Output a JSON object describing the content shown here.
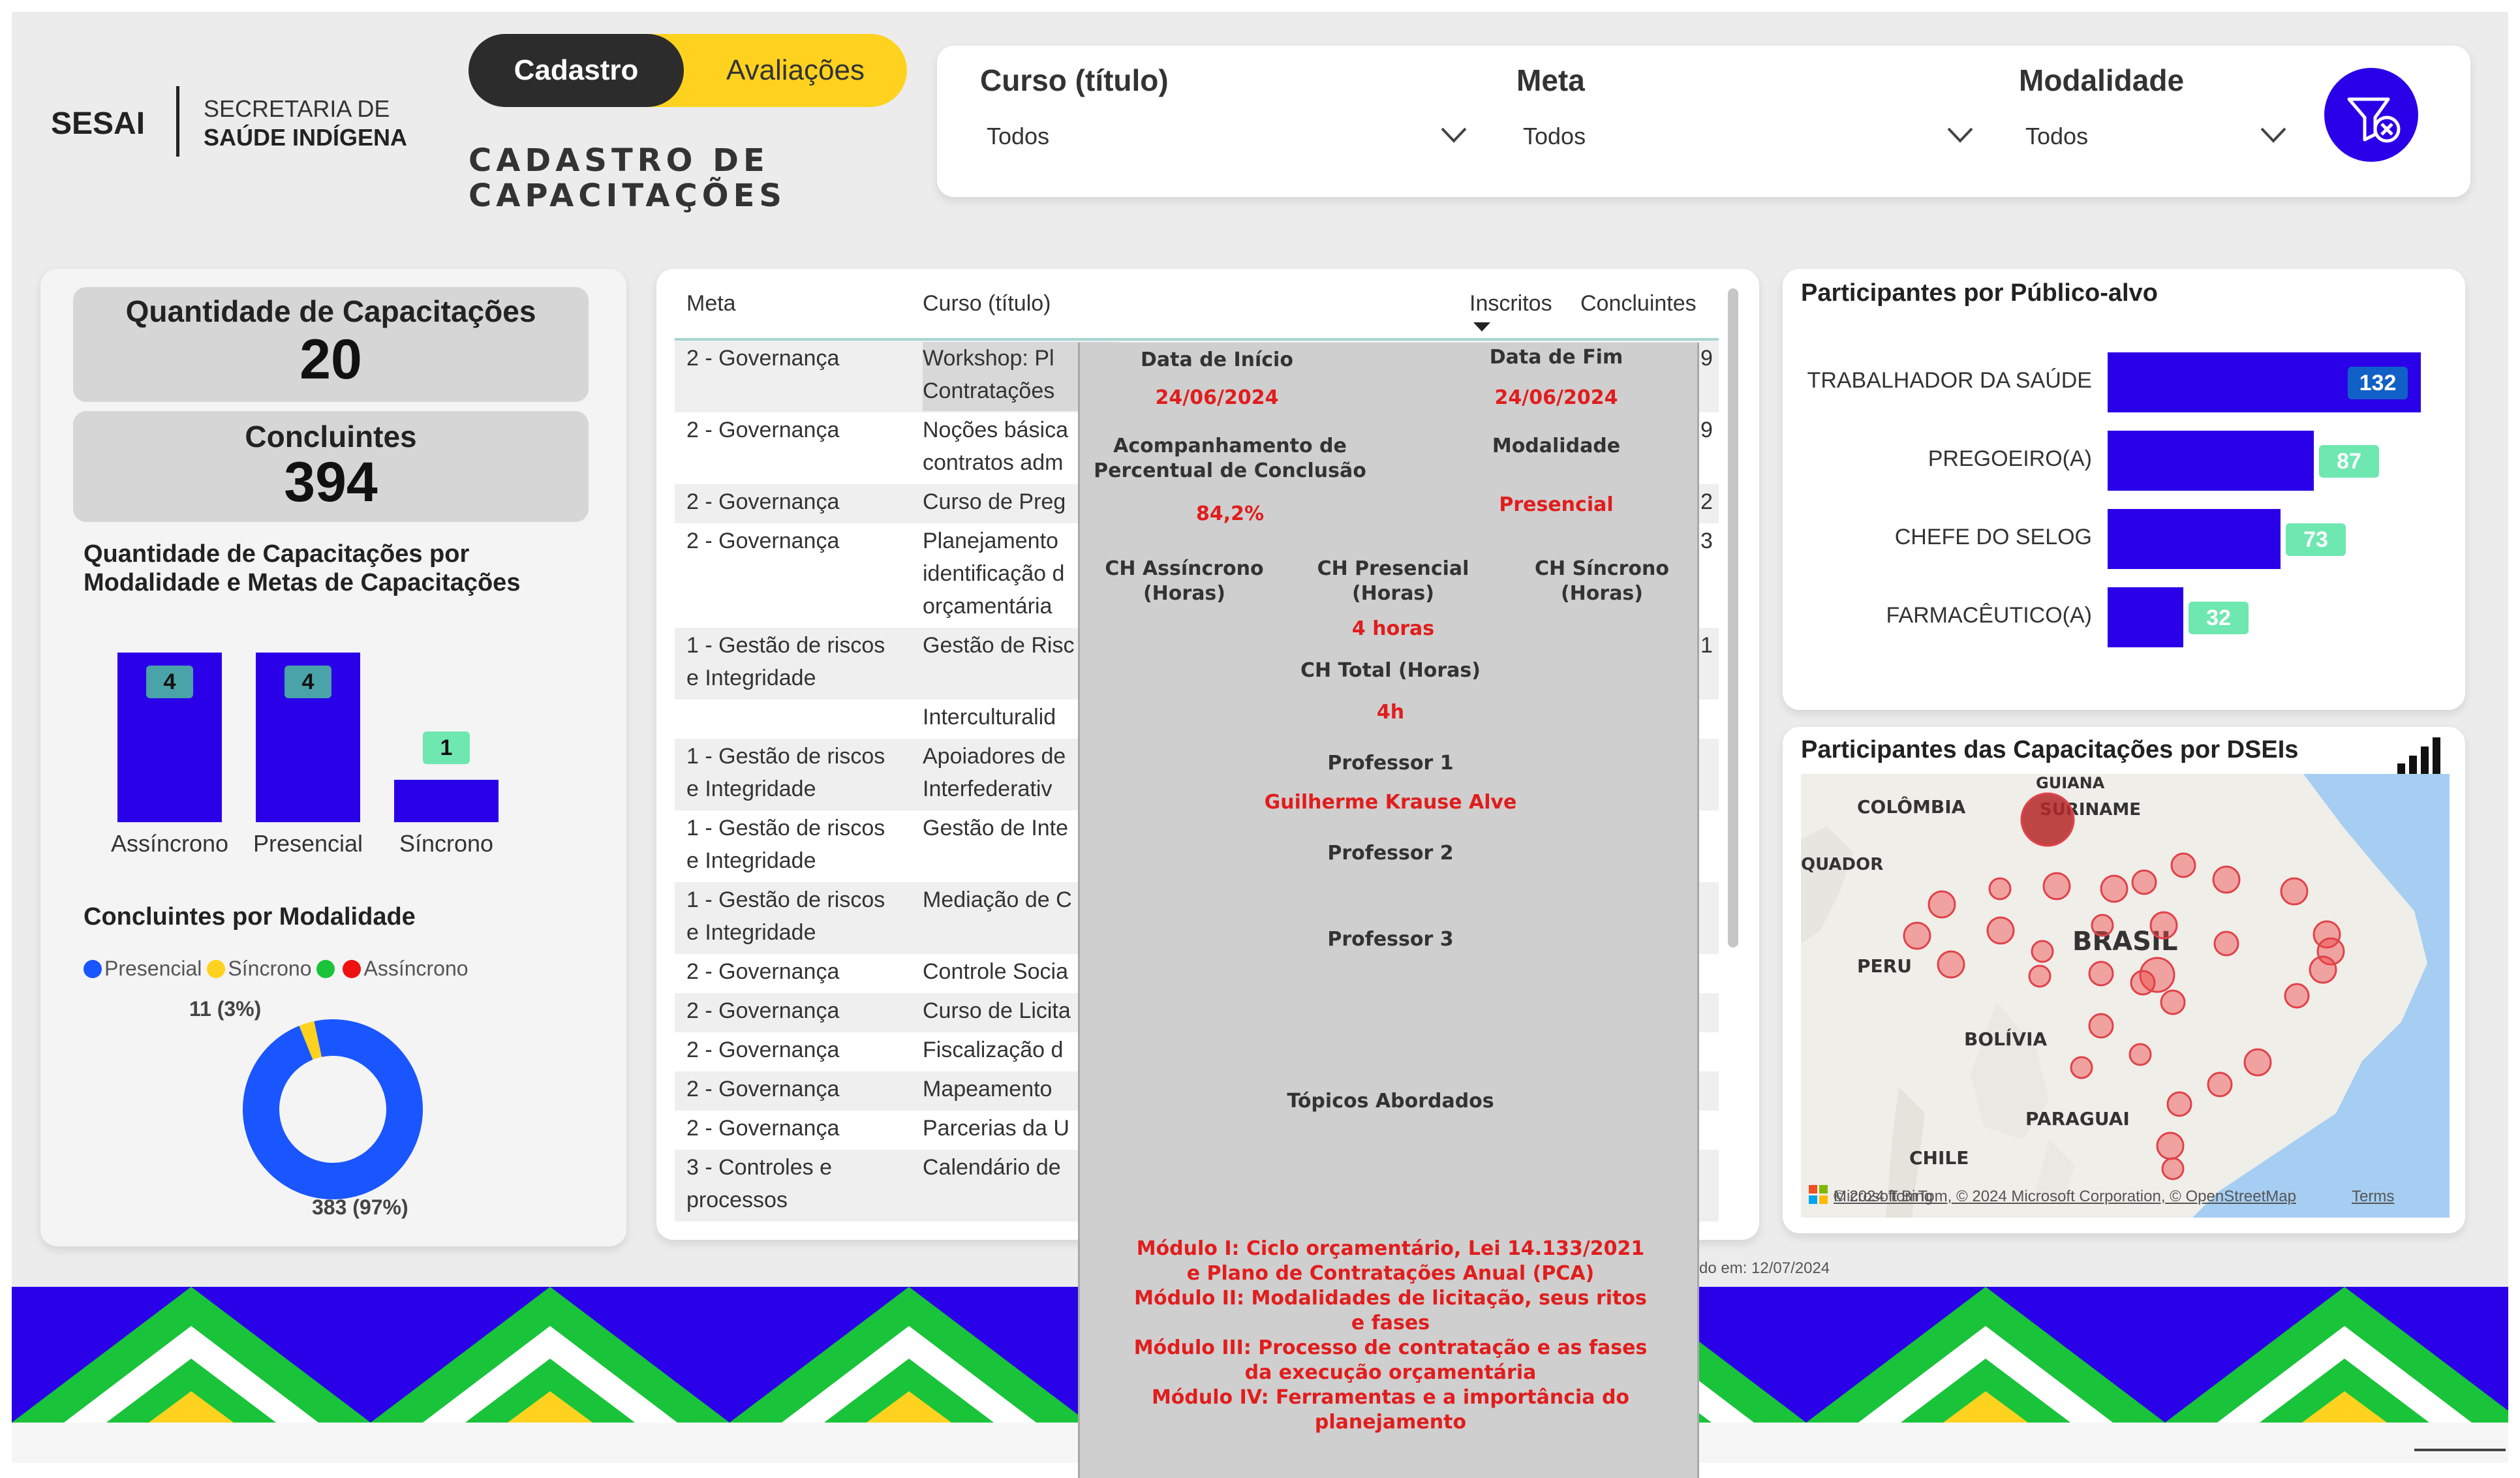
{
  "brand": {
    "short": "SESAI",
    "line1": "SECRETARIA DE",
    "line2": "SAÚDE INDÍGENA"
  },
  "nav": {
    "active": "Cadastro",
    "inactive": "Avaliações"
  },
  "page_title": {
    "line1": "CADASTRO DE",
    "line2": "CAPACITAÇÕES"
  },
  "filters": [
    {
      "label": "Curso (título)",
      "value": "Todos"
    },
    {
      "label": "Meta",
      "value": "Todos"
    },
    {
      "label": "Modalidade",
      "value": "Todos"
    }
  ],
  "kpis": {
    "qtd_label": "Quantidade de Capacitações",
    "qtd_value": "20",
    "conc_label": "Concluintes",
    "conc_value": "394"
  },
  "modalidade_chart": {
    "title_line1": "Quantidade de Capacitações por",
    "title_line2": "Modalidade e Metas de Capacitações",
    "chart_data": {
      "type": "bar",
      "categories": [
        "Assíncrono",
        "Presencial",
        "Síncrono"
      ],
      "values": [
        4,
        4,
        1
      ],
      "colors": [
        "#2a00e8",
        "#2a00e8",
        "#2a00e8"
      ],
      "label_colors": [
        "#4aa3a8",
        "#4aa3a8",
        "#6ee7b0"
      ]
    }
  },
  "concluintes_chart": {
    "title": "Concluintes por Modalidade",
    "legend": [
      "Presencial",
      "Síncrono",
      "",
      "Assíncrono"
    ],
    "legend_colors": [
      "#1a56ff",
      "#ffd21f",
      "#19c33a",
      "#ee1111"
    ],
    "chart_data": {
      "type": "pie",
      "labels": [
        "Presencial",
        "Síncrono"
      ],
      "values": [
        383,
        11
      ],
      "colors": [
        "#1a56ff",
        "#ffd21f"
      ]
    },
    "label_small": "11 (3%)",
    "label_large": "383 (97%)"
  },
  "table": {
    "headers": {
      "meta": "Meta",
      "curso": "Curso (título)",
      "inscritos": "Inscritos",
      "concluintes": "Concluintes"
    },
    "rows": [
      {
        "meta": "2 - Governança",
        "curso": "Workshop: Pl\nContratações",
        "edge": "9"
      },
      {
        "meta": "2 - Governança",
        "curso": "Noções básica\ncontratos adm",
        "edge": "9"
      },
      {
        "meta": "2 - Governança",
        "curso": "Curso de Preg",
        "edge": "2"
      },
      {
        "meta": "2 - Governança",
        "curso": "Planejamento\nidentificação d\norçamentária",
        "edge": "3"
      },
      {
        "meta": "1 - Gestão de riscos\ne Integridade",
        "curso": "Gestão de Risc",
        "edge": "1"
      },
      {
        "meta": "",
        "curso": "Interculturalid",
        "edge": ""
      },
      {
        "meta": "1 - Gestão de riscos\ne Integridade",
        "curso": "Apoiadores de\nInterfederativ",
        "edge": ""
      },
      {
        "meta": "1 - Gestão de riscos\ne Integridade",
        "curso": "Gestão de Inte",
        "edge": ""
      },
      {
        "meta": "1 - Gestão de riscos\ne Integridade",
        "curso": "Mediação de C",
        "edge": ""
      },
      {
        "meta": "2 - Governança",
        "curso": "Controle Socia",
        "edge": ""
      },
      {
        "meta": "2 - Governança",
        "curso": "Curso de Licita",
        "edge": ""
      },
      {
        "meta": "2 - Governança",
        "curso": "Fiscalização d",
        "edge": ""
      },
      {
        "meta": "2 - Governança",
        "curso": "Mapeamento",
        "edge": ""
      },
      {
        "meta": "2 - Governança",
        "curso": "Parcerias da U",
        "edge": ""
      },
      {
        "meta": "3 - Controles e\nprocessos",
        "curso": "Calendário de",
        "edge": ""
      }
    ]
  },
  "tooltip": {
    "data_inicio_label": "Data de Início",
    "data_inicio": "24/06/2024",
    "data_fim_label": "Data de Fim",
    "data_fim": "24/06/2024",
    "acomp_label": "Acompanhamento de\nPercentual de Conclusão",
    "acomp_value": "84,2%",
    "modalidade_label": "Modalidade",
    "modalidade_value": "Presencial",
    "ch_assinc_label": "CH Assíncrono\n(Horas)",
    "ch_pres_label": "CH Presencial\n(Horas)",
    "ch_pres_value": "4 horas",
    "ch_sinc_label": "CH Síncrono\n(Horas)",
    "ch_total_label": "CH Total (Horas)",
    "ch_total_value": "4h",
    "prof1_label": "Professor 1",
    "prof1_value": "Guilherme Krause Alve",
    "prof2_label": "Professor 2",
    "prof3_label": "Professor 3",
    "topicos_label": "Tópicos Abordados",
    "topicos_text": "Módulo I: Ciclo orçamentário, Lei 14.133/2021\ne Plano de Contratações Anual (PCA)\nMódulo II: Modalidades de licitação, seus ritos\ne fases\nMódulo III: Processo de contratação e as fases\nda execução orçamentária\nMódulo IV: Ferramentas e a importância do\nplanejamento"
  },
  "publico_chart": {
    "title": "Participantes por Público-alvo",
    "chart_data": {
      "type": "bar",
      "orientation": "horizontal",
      "categories": [
        "TRABALHADOR DA SAÚDE",
        "PREGOEIRO(A)",
        "CHEFE DO SELOG",
        "FARMACÊUTICO(A)"
      ],
      "values": [
        132,
        87,
        73,
        32
      ],
      "color": "#2a00e8",
      "label_colors": [
        "#1160c8",
        "#6ee7b0",
        "#6ee7b0",
        "#6ee7b0"
      ]
    }
  },
  "map": {
    "title": "Participantes das Capacitações por DSEIs",
    "labels": {
      "guiana": "GUIANA",
      "colombia": "COLÔMBIA",
      "suriname": "SURINAME",
      "equador": "QUADOR",
      "brasil": "BRASIL",
      "peru": "PERU",
      "bolivia": "BOLÍVIA",
      "paraguai": "PARAGUAI",
      "chile": "CHILE"
    },
    "attribution": "© 2024 TomTom, © 2024 Microsoft Corporation, © OpenStreetMap",
    "terms": "Terms",
    "bing": "Microsoft Bing"
  },
  "footer": {
    "updated": "do em: 12/07/2024"
  }
}
